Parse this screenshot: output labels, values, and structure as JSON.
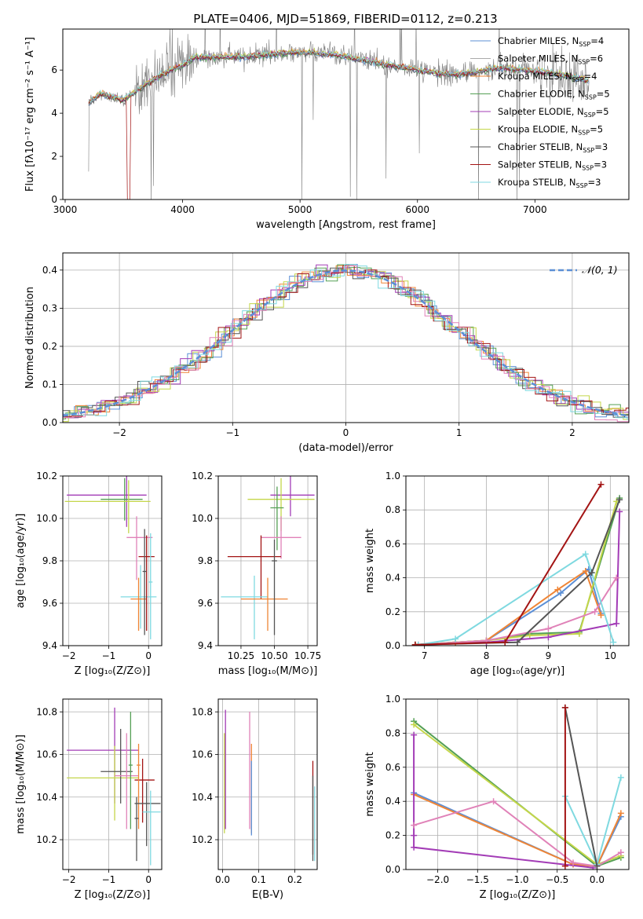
{
  "title": "PLATE=0406, MJD=51869, FIBERID=0112, z=0.213",
  "colors": {
    "grid": "#b0b0b0",
    "palette": [
      "#5b8fd6",
      "#aaaaaa",
      "#ef8536",
      "#55a055",
      "#a33cb6",
      "#c4d64a",
      "#555555",
      "#a31414",
      "#7fd9e0",
      "#e082b8",
      "#b0b0b0"
    ]
  },
  "chart_data": [
    {
      "id": "spectrum",
      "type": "line",
      "title": "PLATE=0406, MJD=51869, FIBERID=0112, z=0.213",
      "xlabel": "wavelength [Angstrom, rest frame]",
      "ylabel": "Flux [fλ10⁻¹⁷ erg cm⁻² s⁻¹ A⁻¹]",
      "xlim": [
        2980,
        7800
      ],
      "ylim": [
        0,
        7.9
      ],
      "xticks": [
        3000,
        4000,
        5000,
        6000,
        7000
      ],
      "yticks": [
        0,
        2,
        4,
        6
      ],
      "data_x_range": [
        3200,
        7460
      ],
      "continuum": {
        "x": [
          3200,
          3300,
          3500,
          3700,
          3900,
          4000,
          4100,
          4300,
          4500,
          4700,
          4900,
          5100,
          5300,
          5500,
          5700,
          5900,
          6100,
          6300,
          6500,
          6700,
          6900,
          7100,
          7300,
          7460
        ],
        "y": [
          4.5,
          4.9,
          4.6,
          5.4,
          6.0,
          6.2,
          6.6,
          6.6,
          6.6,
          6.7,
          6.8,
          6.8,
          6.7,
          6.5,
          6.3,
          6.1,
          5.9,
          5.8,
          5.9,
          6.1,
          6.0,
          5.9,
          5.7,
          5.5
        ]
      },
      "legend_position": "right",
      "legend": [
        {
          "label": "Chabrier MILES, N",
          "sub": "SSP",
          "suffix": "=4",
          "color": "#5b8fd6"
        },
        {
          "label": "Salpeter MILES, N",
          "sub": "SSP",
          "suffix": "=6",
          "color": "#aaaaaa"
        },
        {
          "label": "Kroupa MILES, N",
          "sub": "SSP",
          "suffix": "=4",
          "color": "#ef8536"
        },
        {
          "label": "Chabrier ELODIE, N",
          "sub": "SSP",
          "suffix": "=5",
          "color": "#55a055"
        },
        {
          "label": "Salpeter ELODIE, N",
          "sub": "SSP",
          "suffix": "=5",
          "color": "#a33cb6"
        },
        {
          "label": "Kroupa ELODIE, N",
          "sub": "SSP",
          "suffix": "=5",
          "color": "#c4d64a"
        },
        {
          "label": "Chabrier STELIB, N",
          "sub": "SSP",
          "suffix": "=3",
          "color": "#555555"
        },
        {
          "label": "Salpeter STELIB, N",
          "sub": "SSP",
          "suffix": "=3",
          "color": "#a31414"
        },
        {
          "label": "Kroupa STELIB, N",
          "sub": "SSP",
          "suffix": "=3",
          "color": "#7fd9e0"
        }
      ]
    },
    {
      "id": "residuals",
      "type": "line",
      "xlabel": "(data-model)/error",
      "ylabel": "Normed distribution",
      "xlim": [
        -2.5,
        2.5
      ],
      "ylim": [
        0,
        0.445
      ],
      "xticks": [
        -2,
        -1,
        0,
        1,
        2
      ],
      "yticks": [
        0.0,
        0.1,
        0.2,
        0.3,
        0.4
      ],
      "bin_width": 0.1,
      "gaussian_label": "𝒩(0, 1)",
      "gaussian_color": "#5b8fd6",
      "legend_position": "top-right",
      "series_colors": [
        "#5b8fd6",
        "#ef8536",
        "#55a055",
        "#a33cb6",
        "#c4d64a",
        "#555555",
        "#a31414",
        "#7fd9e0",
        "#e082b8"
      ]
    },
    {
      "id": "z-age",
      "type": "scatter",
      "xlabel": "Z [log₁₀(Z/Z⊙)]",
      "ylabel": "age  [log₁₀(age/yr)]",
      "xlim": [
        -2.15,
        0.33
      ],
      "ylim": [
        9.4,
        10.2
      ],
      "xticks": [
        -2,
        -1,
        0
      ],
      "yticks": [
        9.4,
        9.6,
        9.8,
        10.0,
        10.2
      ],
      "points": [
        {
          "x": -0.55,
          "y": 10.11,
          "xerr": [
            1.5,
            0.5
          ],
          "yerr": [
            0.15,
            0.1
          ],
          "color": "#a33cb6"
        },
        {
          "x": -0.6,
          "y": 10.09,
          "xerr": [
            0.6,
            0.45
          ],
          "yerr": [
            0.1,
            0.1
          ],
          "color": "#55a055"
        },
        {
          "x": -0.5,
          "y": 10.08,
          "xerr": [
            1.6,
            0.55
          ],
          "yerr": [
            0.15,
            0.1
          ],
          "color": "#c4d64a"
        },
        {
          "x": -0.3,
          "y": 9.91,
          "xerr": [
            0.25,
            0.4
          ],
          "yerr": [
            0.2,
            0.1
          ],
          "color": "#e082b8"
        },
        {
          "x": -0.2,
          "y": 9.63,
          "xerr": [
            0.5,
            0.4
          ],
          "yerr": [
            0.15,
            0.15
          ],
          "color": "#7fd9e0"
        },
        {
          "x": -0.25,
          "y": 9.62,
          "xerr": [
            0.2,
            0.2
          ],
          "yerr": [
            0.15,
            0.1
          ],
          "color": "#ef8536"
        },
        {
          "x": -0.05,
          "y": 9.82,
          "xerr": [
            0.2,
            0.2
          ],
          "yerr": [
            0.35,
            0.1
          ],
          "color": "#a31414"
        },
        {
          "x": 0.05,
          "y": 9.7,
          "xerr": [
            0.05,
            0.05
          ],
          "yerr": [
            0.27,
            0.23
          ],
          "color": "#7fd9e0"
        },
        {
          "x": -0.1,
          "y": 9.75,
          "xerr": [
            0.05,
            0.05
          ],
          "yerr": [
            0.3,
            0.2
          ],
          "color": "#555555"
        }
      ]
    },
    {
      "id": "mass-age",
      "type": "scatter",
      "xlabel": "mass [log₁₀(M/M⊙)]",
      "ylabel": "",
      "xlim": [
        10.08,
        10.82
      ],
      "ylim": [
        9.4,
        10.2
      ],
      "xticks": [
        10.25,
        10.5,
        10.75
      ],
      "yticks": [
        9.4,
        9.6,
        9.8,
        10.0,
        10.2
      ],
      "points": [
        {
          "x": 10.62,
          "y": 10.11,
          "xerr": [
            0.15,
            0.18
          ],
          "yerr": [
            0.1,
            0.1
          ],
          "color": "#a33cb6"
        },
        {
          "x": 10.55,
          "y": 10.09,
          "xerr": [
            0.25,
            0.25
          ],
          "yerr": [
            0.15,
            0.1
          ],
          "color": "#c4d64a"
        },
        {
          "x": 10.52,
          "y": 10.05,
          "xerr": [
            0.05,
            0.05
          ],
          "yerr": [
            0.2,
            0.1
          ],
          "color": "#55a055"
        },
        {
          "x": 10.55,
          "y": 9.91,
          "xerr": [
            0.15,
            0.15
          ],
          "yerr": [
            0.1,
            0.1
          ],
          "color": "#e082b8"
        },
        {
          "x": 10.4,
          "y": 9.82,
          "xerr": [
            0.25,
            0.15
          ],
          "yerr": [
            0.2,
            0.1
          ],
          "color": "#a31414"
        },
        {
          "x": 10.35,
          "y": 9.63,
          "xerr": [
            0.25,
            0.1
          ],
          "yerr": [
            0.2,
            0.1
          ],
          "color": "#7fd9e0"
        },
        {
          "x": 10.45,
          "y": 9.62,
          "xerr": [
            0.2,
            0.15
          ],
          "yerr": [
            0.15,
            0.1
          ],
          "color": "#ef8536"
        },
        {
          "x": 10.5,
          "y": 9.8,
          "xerr": [
            0.02,
            0.02
          ],
          "yerr": [
            0.35,
            0.1
          ],
          "color": "#555555"
        }
      ]
    },
    {
      "id": "age-weight",
      "type": "line",
      "xlabel": "age  [log₁₀(age/yr)]",
      "ylabel": "mass weight",
      "xlim": [
        6.7,
        10.3
      ],
      "ylim": [
        0,
        1.0
      ],
      "xticks": [
        7,
        8,
        9,
        10
      ],
      "yticks": [
        0.0,
        0.2,
        0.4,
        0.6,
        0.8,
        1.0
      ],
      "series": [
        {
          "color": "#5b8fd6",
          "x": [
            6.85,
            7.5,
            8.0,
            9.2,
            9.65,
            9.85
          ],
          "y": [
            0.005,
            0.02,
            0.03,
            0.31,
            0.45,
            0.19
          ]
        },
        {
          "color": "#ef8536",
          "x": [
            6.85,
            7.5,
            8.0,
            9.15,
            9.6,
            9.85
          ],
          "y": [
            0.005,
            0.02,
            0.03,
            0.33,
            0.44,
            0.18
          ]
        },
        {
          "color": "#55a055",
          "x": [
            6.85,
            8.0,
            8.7,
            9.5,
            10.15
          ],
          "y": [
            0.005,
            0.03,
            0.07,
            0.08,
            0.87
          ]
        },
        {
          "color": "#c4d64a",
          "x": [
            6.85,
            8.0,
            8.7,
            9.5,
            10.1
          ],
          "y": [
            0.005,
            0.03,
            0.06,
            0.07,
            0.85
          ]
        },
        {
          "color": "#a33cb6",
          "x": [
            6.9,
            8.0,
            9.0,
            10.1,
            10.15
          ],
          "y": [
            0.005,
            0.02,
            0.05,
            0.13,
            0.79
          ]
        },
        {
          "color": "#e082b8",
          "x": [
            6.9,
            8.0,
            9.0,
            9.75,
            10.1
          ],
          "y": [
            0.005,
            0.03,
            0.1,
            0.2,
            0.4
          ]
        },
        {
          "color": "#7fd9e0",
          "x": [
            6.9,
            7.5,
            9.6,
            9.7,
            10.05
          ],
          "y": [
            0.005,
            0.04,
            0.54,
            0.43,
            0.02
          ]
        },
        {
          "color": "#555555",
          "x": [
            6.85,
            8.5,
            9.7,
            10.15
          ],
          "y": [
            0.005,
            0.02,
            0.43,
            0.86
          ]
        },
        {
          "color": "#a31414",
          "x": [
            6.85,
            8.3,
            9.85
          ],
          "y": [
            0.005,
            0.02,
            0.95
          ]
        }
      ]
    },
    {
      "id": "z-mass",
      "type": "scatter",
      "xlabel": "Z [log₁₀(Z/Z⊙)]",
      "ylabel": "mass [log₁₀(M/M⊙)]",
      "xlim": [
        -2.15,
        0.33
      ],
      "ylim": [
        10.06,
        10.86
      ],
      "xticks": [
        -2,
        -1,
        0
      ],
      "yticks": [
        10.2,
        10.4,
        10.6,
        10.8
      ],
      "points": [
        {
          "x": -0.85,
          "y": 10.62,
          "xerr": [
            1.2,
            0.6
          ],
          "yerr": [
            0.25,
            0.2
          ],
          "color": "#a33cb6"
        },
        {
          "x": -0.85,
          "y": 10.49,
          "xerr": [
            1.2,
            0.6
          ],
          "yerr": [
            0.2,
            0.15
          ],
          "color": "#c4d64a"
        },
        {
          "x": -0.7,
          "y": 10.52,
          "xerr": [
            0.5,
            0.3
          ],
          "yerr": [
            0.15,
            0.2
          ],
          "color": "#555555"
        },
        {
          "x": -0.55,
          "y": 10.5,
          "xerr": [
            0.3,
            0.3
          ],
          "yerr": [
            0.25,
            0.2
          ],
          "color": "#e082b8"
        },
        {
          "x": -0.45,
          "y": 10.55,
          "xerr": [
            0.05,
            0.05
          ],
          "yerr": [
            0.3,
            0.25
          ],
          "color": "#55a055"
        },
        {
          "x": -0.15,
          "y": 10.48,
          "xerr": [
            0.2,
            0.3
          ],
          "yerr": [
            0.2,
            0.1
          ],
          "color": "#a31414"
        },
        {
          "x": -0.25,
          "y": 10.55,
          "xerr": [
            0.05,
            0.05
          ],
          "yerr": [
            0.3,
            0.1
          ],
          "color": "#ef8536"
        },
        {
          "x": -0.05,
          "y": 10.37,
          "xerr": [
            0.3,
            0.35
          ],
          "yerr": [
            0.2,
            0.1
          ],
          "color": "#555555"
        },
        {
          "x": 0.05,
          "y": 10.33,
          "xerr": [
            0.2,
            0.25
          ],
          "yerr": [
            0.25,
            0.1
          ],
          "color": "#7fd9e0"
        },
        {
          "x": -0.3,
          "y": 10.3,
          "xerr": [
            0.05,
            0.05
          ],
          "yerr": [
            0.2,
            0.1
          ],
          "color": "#555555"
        }
      ]
    },
    {
      "id": "ebv-mass",
      "type": "scatter",
      "xlabel": "E(B-V)",
      "ylabel": "",
      "xlim": [
        -0.012,
        0.262
      ],
      "ylim": [
        10.06,
        10.86
      ],
      "xticks": [
        0.0,
        0.1,
        0.2
      ],
      "yticks": [
        10.2,
        10.4,
        10.6,
        10.8
      ],
      "points": [
        {
          "x": 0.008,
          "y": 10.55,
          "yerr": [
            0.3,
            0.26
          ],
          "color": "#a33cb6"
        },
        {
          "x": 0.005,
          "y": 10.5,
          "yerr": [
            0.27,
            0.2
          ],
          "color": "#c4d64a"
        },
        {
          "x": 0.075,
          "y": 10.5,
          "yerr": [
            0.25,
            0.3
          ],
          "color": "#e082b8"
        },
        {
          "x": 0.08,
          "y": 10.45,
          "yerr": [
            0.22,
            0.2
          ],
          "color": "#ef8536"
        },
        {
          "x": 0.08,
          "y": 10.42,
          "yerr": [
            0.2,
            0.15
          ],
          "color": "#5b8fd6"
        },
        {
          "x": 0.25,
          "y": 10.35,
          "yerr": [
            0.22,
            0.22
          ],
          "color": "#a31414"
        },
        {
          "x": 0.25,
          "y": 10.3,
          "yerr": [
            0.2,
            0.2
          ],
          "color": "#555555"
        },
        {
          "x": 0.255,
          "y": 10.3,
          "yerr": [
            0.2,
            0.15
          ],
          "color": "#7fd9e0"
        }
      ]
    },
    {
      "id": "z-weight",
      "type": "line",
      "xlabel": "Z [log₁₀(Z/Z⊙)]",
      "ylabel": "mass weight",
      "xlim": [
        -2.4,
        0.4
      ],
      "ylim": [
        0,
        1.0
      ],
      "xticks": [
        -2.0,
        -1.5,
        -1.0,
        -0.5,
        0.0
      ],
      "yticks": [
        0.0,
        0.2,
        0.4,
        0.6,
        0.8,
        1.0
      ],
      "series": [
        {
          "color": "#5b8fd6",
          "x": [
            -2.3,
            -0.3,
            0.0,
            0.3
          ],
          "y": [
            0.45,
            0.03,
            0.02,
            0.31
          ]
        },
        {
          "color": "#ef8536",
          "x": [
            -2.3,
            -0.3,
            0.0,
            0.3
          ],
          "y": [
            0.44,
            0.03,
            0.02,
            0.33
          ]
        },
        {
          "color": "#55a055",
          "x": [
            -2.3,
            0.0,
            0.3
          ],
          "y": [
            0.87,
            0.02,
            0.07
          ]
        },
        {
          "color": "#c4d64a",
          "x": [
            -2.3,
            0.0,
            0.3
          ],
          "y": [
            0.85,
            0.03,
            0.08
          ]
        },
        {
          "color": "#a33cb6",
          "x": [
            -2.3,
            -2.3,
            -2.3,
            -0.05
          ],
          "y": [
            0.79,
            0.2,
            0.13,
            0.01
          ]
        },
        {
          "color": "#e082b8",
          "x": [
            -2.3,
            -1.3,
            -0.3,
            0.0,
            0.3
          ],
          "y": [
            0.26,
            0.4,
            0.04,
            0.02,
            0.1
          ]
        },
        {
          "color": "#7fd9e0",
          "x": [
            -0.4,
            0.0,
            0.3
          ],
          "y": [
            0.43,
            0.03,
            0.54
          ]
        },
        {
          "color": "#555555",
          "x": [
            -0.4,
            0.0
          ],
          "y": [
            0.95,
            0.02
          ]
        },
        {
          "color": "#a31414",
          "x": [
            -0.4,
            -0.4
          ],
          "y": [
            0.95,
            0.02
          ]
        }
      ]
    }
  ]
}
